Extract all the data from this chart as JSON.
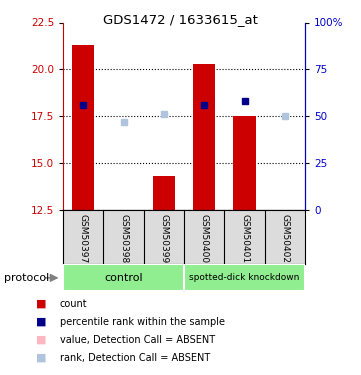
{
  "title": "GDS1472 / 1633615_at",
  "samples": [
    "GSM50397",
    "GSM50398",
    "GSM50399",
    "GSM50400",
    "GSM50401",
    "GSM50402"
  ],
  "x_positions": [
    1,
    2,
    3,
    4,
    5,
    6
  ],
  "bar_bottom": 12.5,
  "count_values": [
    21.3,
    12.5,
    14.3,
    20.3,
    17.5,
    12.5
  ],
  "count_present": [
    true,
    false,
    true,
    true,
    true,
    false
  ],
  "rank_values": [
    18.1,
    17.2,
    17.6,
    18.1,
    18.3,
    17.5
  ],
  "rank_present": [
    true,
    false,
    false,
    true,
    true,
    false
  ],
  "ylim": [
    12.5,
    22.5
  ],
  "y_left_ticks": [
    12.5,
    15.0,
    17.5,
    20.0,
    22.5
  ],
  "y_right_tick_labels": [
    "0",
    "25",
    "50",
    "75",
    "100%"
  ],
  "y_right_values": [
    12.5,
    15.0,
    17.5,
    20.0,
    22.5
  ],
  "dotted_lines": [
    15.0,
    17.5,
    20.0
  ],
  "group_control_label": "control",
  "group_knockdown_label": "spotted-dick knockdown",
  "group_color": "#90EE90",
  "bar_color_present": "#CC0000",
  "bar_color_absent": "#FFB6C1",
  "rank_color_present": "#00008B",
  "rank_color_absent": "#B0C4DE",
  "marker_size": 5,
  "bg_color": "#DCDCDC",
  "ylabel_left_color": "#CC0000",
  "ylabel_right_color": "#0000CC",
  "protocol_label": "protocol",
  "legend": [
    {
      "color": "#CC0000",
      "label": "count"
    },
    {
      "color": "#00008B",
      "label": "percentile rank within the sample"
    },
    {
      "color": "#FFB6C1",
      "label": "value, Detection Call = ABSENT"
    },
    {
      "color": "#B0C4DE",
      "label": "rank, Detection Call = ABSENT"
    }
  ]
}
